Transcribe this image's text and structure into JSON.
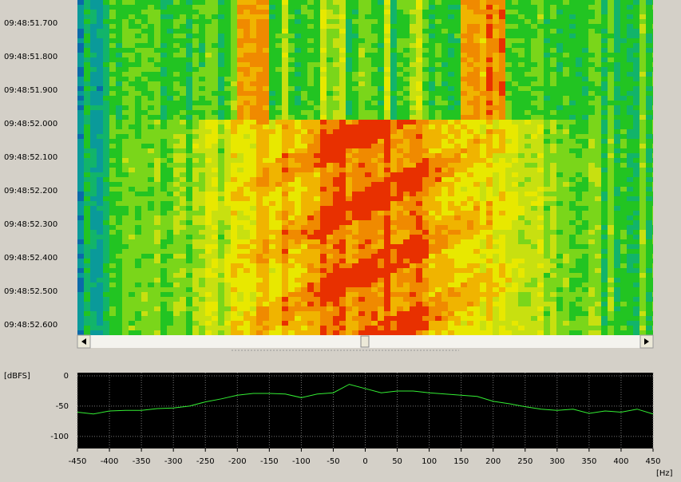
{
  "spectrogram": {
    "time_labels": [
      "09:48:51.700",
      "09:48:51.800",
      "09:48:51.900",
      "09:48:52.000",
      "09:48:52.100",
      "09:48:52.200",
      "09:48:52.300",
      "09:48:52.400",
      "09:48:52.500",
      "09:48:52.600"
    ]
  },
  "chart_data": {
    "type": "line",
    "ylabel": "[dBFS]",
    "xlabel": "[Hz]",
    "x": [
      -450,
      -425,
      -400,
      -375,
      -350,
      -325,
      -300,
      -275,
      -250,
      -225,
      -200,
      -175,
      -150,
      -125,
      -100,
      -75,
      -50,
      -25,
      0,
      25,
      50,
      75,
      100,
      125,
      150,
      175,
      200,
      225,
      250,
      275,
      300,
      325,
      350,
      375,
      400,
      425,
      450
    ],
    "series": [
      {
        "color": "#33ee33",
        "values": [
          -60,
          -63,
          -58,
          -57,
          -57,
          -54,
          -53,
          -50,
          -43,
          -38,
          -32,
          -29,
          -29,
          -30,
          -36,
          -30,
          -28,
          -14,
          -21,
          -28,
          -25,
          -25,
          -28,
          -30,
          -32,
          -34,
          -42,
          -46,
          -51,
          -55,
          -57,
          -55,
          -62,
          -58,
          -60,
          -55,
          -63
        ]
      }
    ],
    "xlim": [
      -450,
      450
    ],
    "ylim": [
      -120,
      0
    ],
    "xticks": [
      -450,
      -400,
      -350,
      -300,
      -250,
      -200,
      -150,
      -100,
      -50,
      0,
      50,
      100,
      150,
      200,
      250,
      300,
      350,
      400,
      450
    ],
    "yticks": [
      0,
      -50,
      -100
    ],
    "grid": true
  }
}
